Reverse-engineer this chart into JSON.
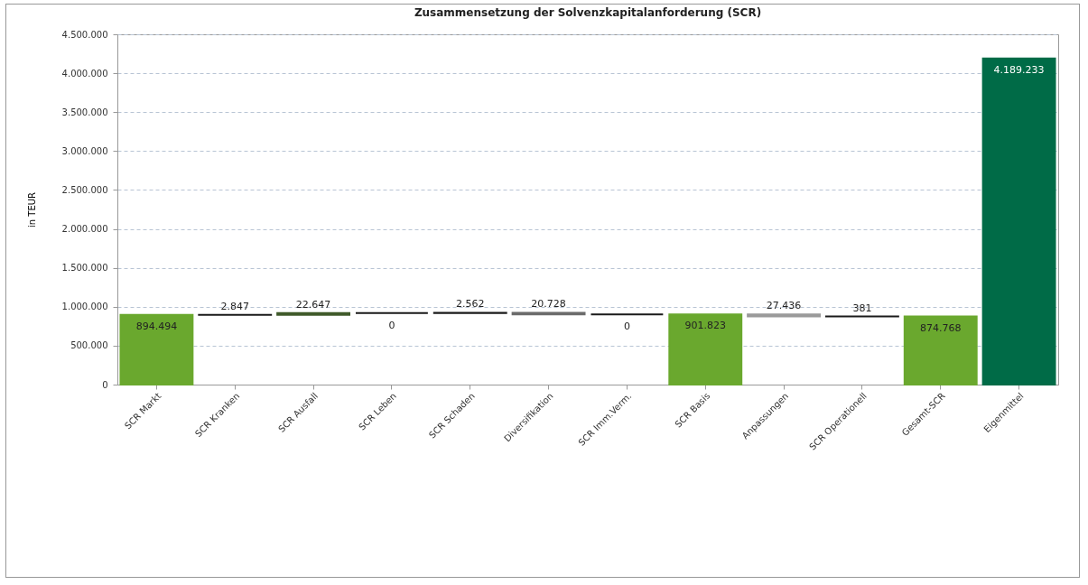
{
  "chart_data": {
    "type": "bar",
    "title": "Zusammensetzung der Solvenzkapitalanforderung (SCR)",
    "ylabel": "in TEUR",
    "categories": [
      "SCR Markt",
      "SCR Kranken",
      "SCR Ausfall",
      "SCR Leben",
      "SCR Schaden",
      "Diversifikation",
      "SCR Imm.Verm.",
      "SCR Basis",
      "Anpassungen",
      "SCR Operationell",
      "Gesamt-SCR",
      "Eigenmittel"
    ],
    "values": [
      894494,
      2847,
      22647,
      0,
      2562,
      -20728,
      0,
      901823,
      -27436,
      381,
      874768,
      4189233
    ],
    "base": [
      0,
      894494,
      897341,
      919988,
      919988,
      922550,
      901823,
      0,
      901823,
      874387,
      0,
      0
    ],
    "colors": [
      "#6aa82e",
      "#1a1a1a",
      "#3f5a2a",
      "#1a1a1a",
      "#1a1a1a",
      "#6b6b6b",
      "#1a1a1a",
      "#6aa82e",
      "#9a9a9a",
      "#1a1a1a",
      "#6aa82e",
      "#006b47"
    ],
    "value_labels": [
      "894.494",
      "2.847",
      "22.647",
      "0",
      "2.562",
      "20.728",
      "0",
      "901.823",
      "27.436",
      "381",
      "874.768",
      "4.189.233"
    ],
    "ylim": [
      0,
      4500000
    ],
    "yticks": [
      0,
      {
        "value": 500000,
        "label": "500.000"
      },
      {
        "value": 1000000,
        "label": "1.000.000"
      },
      {
        "value": 1500000,
        "label": "1.500.000"
      },
      {
        "value": 2000000,
        "label": "2.000.000"
      },
      {
        "value": 2500000,
        "label": "2.500.000"
      },
      {
        "value": 3000000,
        "label": "3.000.000"
      },
      {
        "value": 3500000,
        "label": "3.500.000"
      },
      {
        "value": 4000000,
        "label": "4.000.000"
      },
      {
        "value": 4500000,
        "label": "4.500.000"
      }
    ],
    "grid": "y"
  }
}
